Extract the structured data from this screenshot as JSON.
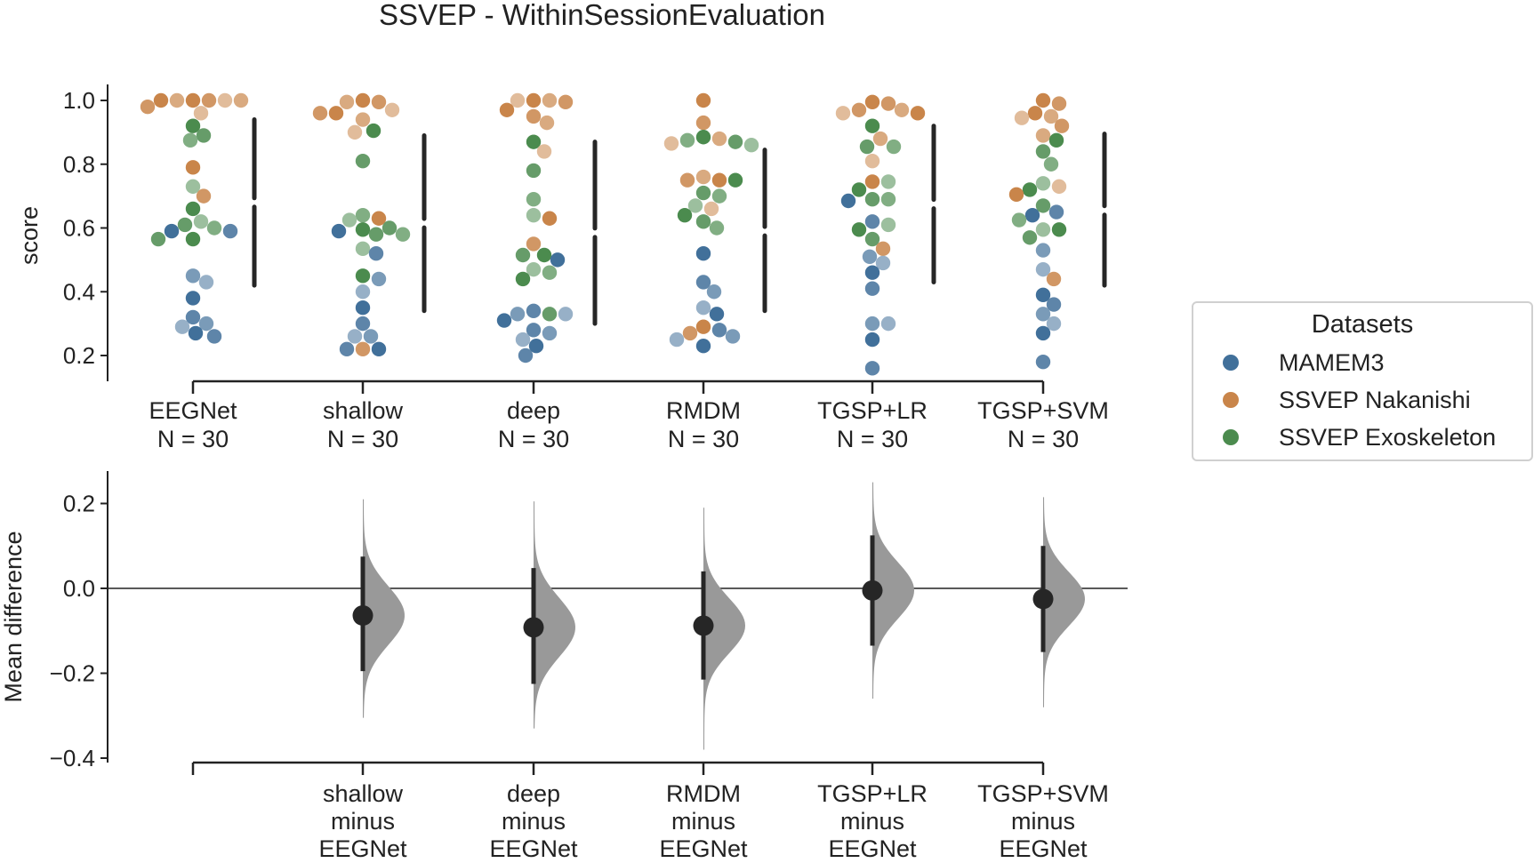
{
  "chart_data": {
    "type": "scatter",
    "title": "SSVEP - WithinSessionEvaluation",
    "colors": {
      "MAMEM3": "#41709a",
      "SSVEP Nakanishi": "#c9854a",
      "SSVEP Exoskeleton": "#4b8b4e"
    },
    "legend": {
      "title": "Datasets",
      "placement": "right",
      "entries": [
        "MAMEM3",
        "SSVEP Nakanishi",
        "SSVEP Exoskeleton"
      ]
    },
    "top_panel": {
      "type": "swarm",
      "ylabel": "score",
      "ylim": [
        0.15,
        1.05
      ],
      "yticks": [
        "0.2",
        "0.4",
        "0.6",
        "0.8",
        "1.0"
      ],
      "groups": [
        {
          "name": "EEGNet",
          "n_label": "N = 30",
          "mean": 0.68,
          "sd_low": 0.42,
          "sd_high": 0.94,
          "points": {
            "SSVEP Nakanishi": [
              1.0,
              1.0,
              1.0,
              1.0,
              1.0,
              0.98,
              1.0,
              0.96,
              0.79,
              0.7
            ],
            "SSVEP Exoskeleton": [
              0.92,
              0.89,
              0.875,
              0.73,
              0.66,
              0.61,
              0.6,
              0.62,
              0.565,
              0.565
            ],
            "MAMEM3": [
              0.59,
              0.59,
              0.45,
              0.43,
              0.38,
              0.32,
              0.3,
              0.29,
              0.27,
              0.26
            ]
          }
        },
        {
          "name": "shallow",
          "n_label": "N = 30",
          "mean": 0.615,
          "sd_low": 0.34,
          "sd_high": 0.89,
          "points": {
            "SSVEP Nakanishi": [
              1.0,
              0.995,
              0.995,
              0.97,
              0.96,
              0.96,
              0.94,
              0.9,
              0.63,
              0.22
            ],
            "SSVEP Exoskeleton": [
              0.905,
              0.81,
              0.64,
              0.625,
              0.595,
              0.58,
              0.58,
              0.535,
              0.45,
              0.6
            ],
            "MAMEM3": [
              0.59,
              0.52,
              0.44,
              0.4,
              0.35,
              0.3,
              0.26,
              0.26,
              0.22,
              0.22
            ]
          }
        },
        {
          "name": "deep",
          "n_label": "N = 30",
          "mean": 0.585,
          "sd_low": 0.3,
          "sd_high": 0.87,
          "points": {
            "SSVEP Nakanishi": [
              1.0,
              0.995,
              1.0,
              1.0,
              0.97,
              0.95,
              0.93,
              0.84,
              0.63,
              0.55
            ],
            "SSVEP Exoskeleton": [
              0.87,
              0.78,
              0.69,
              0.64,
              0.515,
              0.515,
              0.46,
              0.47,
              0.44,
              0.33
            ],
            "MAMEM3": [
              0.5,
              0.34,
              0.33,
              0.33,
              0.31,
              0.28,
              0.27,
              0.25,
              0.23,
              0.2
            ]
          }
        },
        {
          "name": "RMDM",
          "n_label": "N = 30",
          "mean": 0.59,
          "sd_low": 0.34,
          "sd_high": 0.845,
          "points": {
            "SSVEP Nakanishi": [
              1.0,
              0.93,
              0.88,
              0.865,
              0.75,
              0.75,
              0.76,
              0.66,
              0.29,
              0.27
            ],
            "SSVEP Exoskeleton": [
              0.885,
              0.87,
              0.875,
              0.86,
              0.75,
              0.71,
              0.7,
              0.67,
              0.64,
              0.62,
              0.6
            ],
            "MAMEM3": [
              0.52,
              0.43,
              0.4,
              0.35,
              0.33,
              0.28,
              0.26,
              0.25,
              0.23
            ]
          }
        },
        {
          "name": "TGSP+LR",
          "n_label": "N = 30",
          "mean": 0.675,
          "sd_low": 0.43,
          "sd_high": 0.92,
          "points": {
            "SSVEP Nakanishi": [
              0.995,
              0.97,
              0.97,
              0.96,
              0.96,
              0.99,
              0.88,
              0.81,
              0.745,
              0.535
            ],
            "SSVEP Exoskeleton": [
              0.92,
              0.855,
              0.855,
              0.745,
              0.72,
              0.69,
              0.69,
              0.61,
              0.595,
              0.565
            ],
            "MAMEM3": [
              0.685,
              0.62,
              0.51,
              0.49,
              0.46,
              0.41,
              0.3,
              0.3,
              0.25,
              0.16
            ]
          }
        },
        {
          "name": "TGSP+SVM",
          "n_label": "N = 30",
          "mean": 0.655,
          "sd_low": 0.42,
          "sd_high": 0.895,
          "points": {
            "SSVEP Nakanishi": [
              1.0,
              0.99,
              0.95,
              0.945,
              0.96,
              0.92,
              0.89,
              0.73,
              0.705,
              0.44
            ],
            "SSVEP Exoskeleton": [
              0.875,
              0.84,
              0.8,
              0.74,
              0.72,
              0.67,
              0.625,
              0.595,
              0.595,
              0.57
            ],
            "MAMEM3": [
              0.64,
              0.65,
              0.53,
              0.47,
              0.39,
              0.36,
              0.33,
              0.3,
              0.27,
              0.18
            ]
          }
        }
      ]
    },
    "bottom_panel": {
      "type": "estimation",
      "ylabel": "Mean difference",
      "ylim": [
        -0.4,
        0.25
      ],
      "yticks": [
        "−0.4",
        "−0.2",
        "0.0",
        "0.2"
      ],
      "reference_line": 0.0,
      "comparisons": [
        {
          "label": [
            "shallow",
            "minus",
            "EEGNet"
          ],
          "mean_diff": -0.064,
          "ci": [
            -0.195,
            0.075
          ],
          "dist_range": [
            -0.305,
            0.21
          ]
        },
        {
          "label": [
            "deep",
            "minus",
            "EEGNet"
          ],
          "mean_diff": -0.092,
          "ci": [
            -0.225,
            0.048
          ],
          "dist_range": [
            -0.33,
            0.205
          ]
        },
        {
          "label": [
            "RMDM",
            "minus",
            "EEGNet"
          ],
          "mean_diff": -0.088,
          "ci": [
            -0.215,
            0.04
          ],
          "dist_range": [
            -0.38,
            0.19
          ]
        },
        {
          "label": [
            "TGSP+LR",
            "minus",
            "EEGNet"
          ],
          "mean_diff": -0.005,
          "ci": [
            -0.135,
            0.125
          ],
          "dist_range": [
            -0.26,
            0.25
          ]
        },
        {
          "label": [
            "TGSP+SVM",
            "minus",
            "EEGNet"
          ],
          "mean_diff": -0.025,
          "ci": [
            -0.15,
            0.1
          ],
          "dist_range": [
            -0.28,
            0.215
          ]
        }
      ]
    }
  }
}
